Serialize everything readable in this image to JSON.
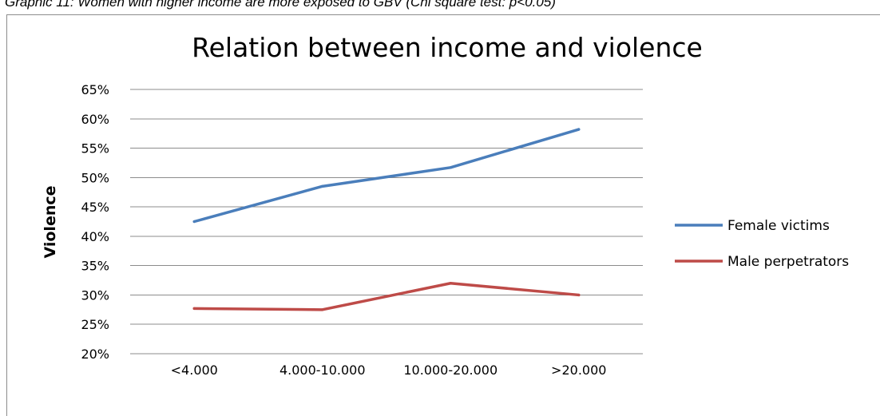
{
  "caption": "Graphic 11: Women with higher income are more exposed to GBV (Chi square test: p<0.05)",
  "chart_data": {
    "type": "line",
    "title": "Relation between income and violence",
    "xlabel": "",
    "ylabel": "Violence",
    "categories": [
      "<4.000",
      "4.000-10.000",
      "10.000-20.000",
      ">20.000"
    ],
    "ylim": [
      0.2,
      0.65
    ],
    "yticks": [
      "20%",
      "25%",
      "30%",
      "35%",
      "40%",
      "45%",
      "50%",
      "55%",
      "60%",
      "65%"
    ],
    "grid": true,
    "legend": "right",
    "series": [
      {
        "name": "Female victims",
        "color": "#4a7ebb",
        "values": [
          0.425,
          0.485,
          0.517,
          0.582
        ]
      },
      {
        "name": "Male perpetrators",
        "color": "#be4b48",
        "values": [
          0.277,
          0.275,
          0.32,
          0.3
        ]
      }
    ]
  }
}
